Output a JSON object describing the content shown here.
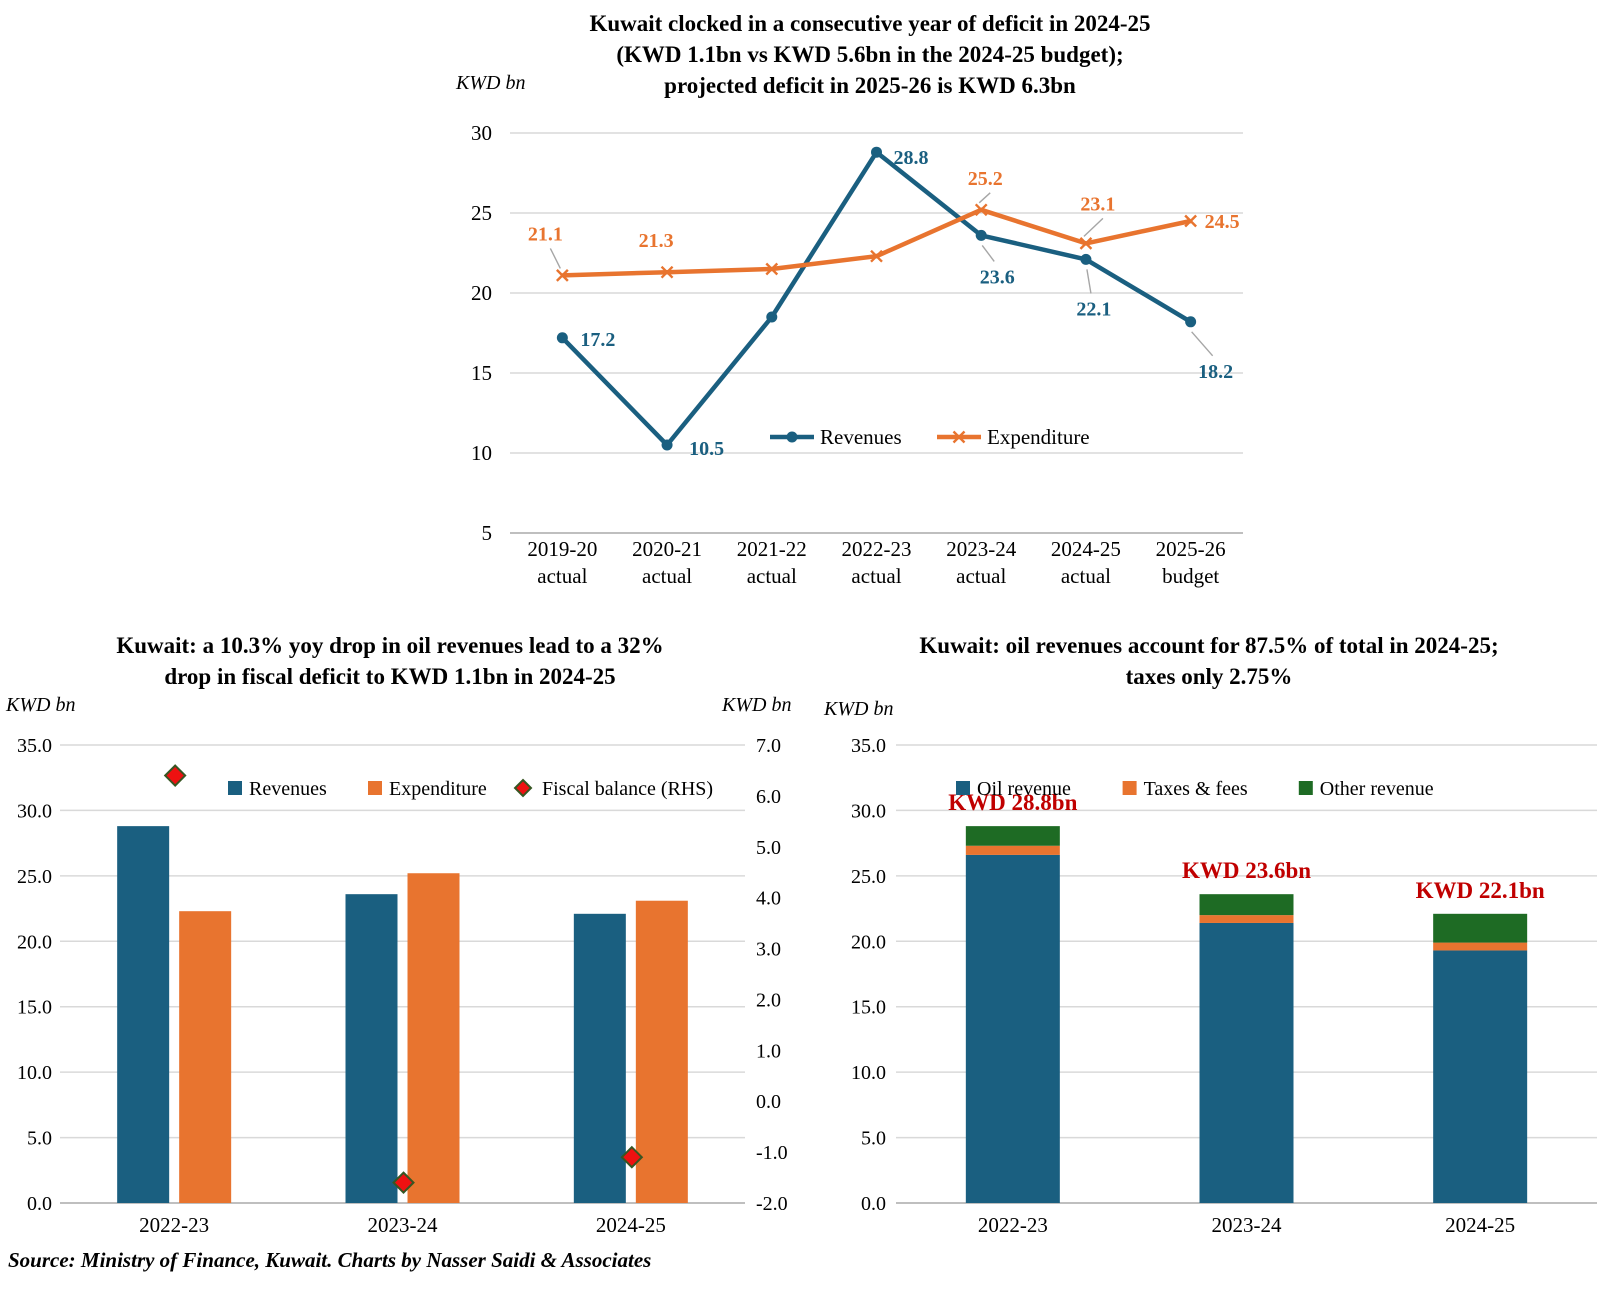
{
  "page": {
    "source_note": "Source: Ministry of Finance, Kuwait. Charts by Nasser Saidi & Associates"
  },
  "colors": {
    "revenues": "#1A5F80",
    "expenditure": "#E8742F",
    "oil": "#1A5F80",
    "taxes": "#E8742F",
    "other": "#1E6B24",
    "fiscal_fill": "#EE1111",
    "fiscal_border": "#375623",
    "annotation": "#C00000",
    "gridline": "#D9D9D9",
    "axisline": "#BFBFBF",
    "leader": "#A6A6A6"
  },
  "chart_data": [
    {
      "id": "deficit-line-chart",
      "type": "line",
      "title_lines": [
        "Kuwait clocked in a consecutive year of deficit in 2024-25",
        "(KWD 1.1bn vs KWD 5.6bn in the 2024-25 budget);",
        "projected deficit in 2025-26 is KWD 6.3bn"
      ],
      "unit_label": "KWD bn",
      "ylim": [
        5,
        30
      ],
      "yticks": [
        "30",
        "25",
        "20",
        "15",
        "10",
        "5"
      ],
      "categories": [
        "2019-20",
        "2020-21",
        "2021-22",
        "2022-23",
        "2023-24",
        "2024-25",
        "2025-26"
      ],
      "category_sublabels": [
        "actual",
        "actual",
        "actual",
        "actual",
        "actual",
        "actual",
        "budget"
      ],
      "legend_position": "inside-bottom",
      "series": [
        {
          "name": "Revenues",
          "marker": "circle",
          "color_key": "revenues",
          "values": [
            17.2,
            10.5,
            18.5,
            28.8,
            23.6,
            22.1,
            18.2
          ],
          "point_labels": [
            "17.2",
            "10.5",
            "",
            "28.8",
            "23.6",
            "22.1",
            "18.2"
          ]
        },
        {
          "name": "Expenditure",
          "marker": "x",
          "color_key": "expenditure",
          "values": [
            21.1,
            21.3,
            21.5,
            22.3,
            25.2,
            23.1,
            24.5
          ],
          "point_labels": [
            "21.1",
            "21.3",
            "",
            "",
            "25.2",
            "23.1",
            "24.5"
          ]
        }
      ]
    },
    {
      "id": "fiscal-balance-bar-chart",
      "type": "grouped-bar",
      "title_lines": [
        "Kuwait: a 10.3% yoy drop in oil revenues lead to a 32%",
        "drop in fiscal deficit to KWD 1.1bn in 2024-25"
      ],
      "unit_label_left": "KWD bn",
      "unit_label_right": "KWD bn",
      "ylim_left": [
        0,
        35
      ],
      "yticks_left": [
        "35.0",
        "30.0",
        "25.0",
        "20.0",
        "15.0",
        "10.0",
        "5.0",
        "0.0"
      ],
      "ylim_right": [
        -2,
        7
      ],
      "yticks_right": [
        "7.0",
        "6.0",
        "5.0",
        "4.0",
        "3.0",
        "2.0",
        "1.0",
        "0.0",
        "-1.0",
        "-2.0"
      ],
      "categories": [
        "2022-23",
        "2023-24",
        "2024-25"
      ],
      "series": [
        {
          "name": "Revenues",
          "color_key": "revenues",
          "values": [
            28.8,
            23.6,
            22.1
          ]
        },
        {
          "name": "Expenditure",
          "color_key": "expenditure",
          "values": [
            22.3,
            25.2,
            23.1
          ]
        }
      ],
      "marker_series": {
        "name": "Fiscal balance (RHS)",
        "axis": "right",
        "values": [
          6.4,
          -1.6,
          -1.1
        ]
      }
    },
    {
      "id": "revenue-breakdown-stacked-chart",
      "type": "stacked-bar",
      "title_lines": [
        "Kuwait: oil revenues account for 87.5% of total in 2024-25;",
        "taxes only 2.75%"
      ],
      "unit_label": "KWD bn",
      "ylim": [
        0,
        35
      ],
      "yticks": [
        "35.0",
        "30.0",
        "25.0",
        "20.0",
        "15.0",
        "10.0",
        "5.0",
        "0.0"
      ],
      "categories": [
        "2022-23",
        "2023-24",
        "2024-25"
      ],
      "series": [
        {
          "name": "Oil revenue",
          "color_key": "oil",
          "values": [
            26.6,
            21.4,
            19.3
          ]
        },
        {
          "name": "Taxes & fees",
          "color_key": "taxes",
          "values": [
            0.7,
            0.6,
            0.6
          ]
        },
        {
          "name": "Other revenue",
          "color_key": "other",
          "values": [
            1.5,
            1.6,
            2.2
          ]
        }
      ],
      "total_labels": [
        "KWD 28.8bn",
        "KWD 23.6bn",
        "KWD 22.1bn"
      ]
    }
  ]
}
